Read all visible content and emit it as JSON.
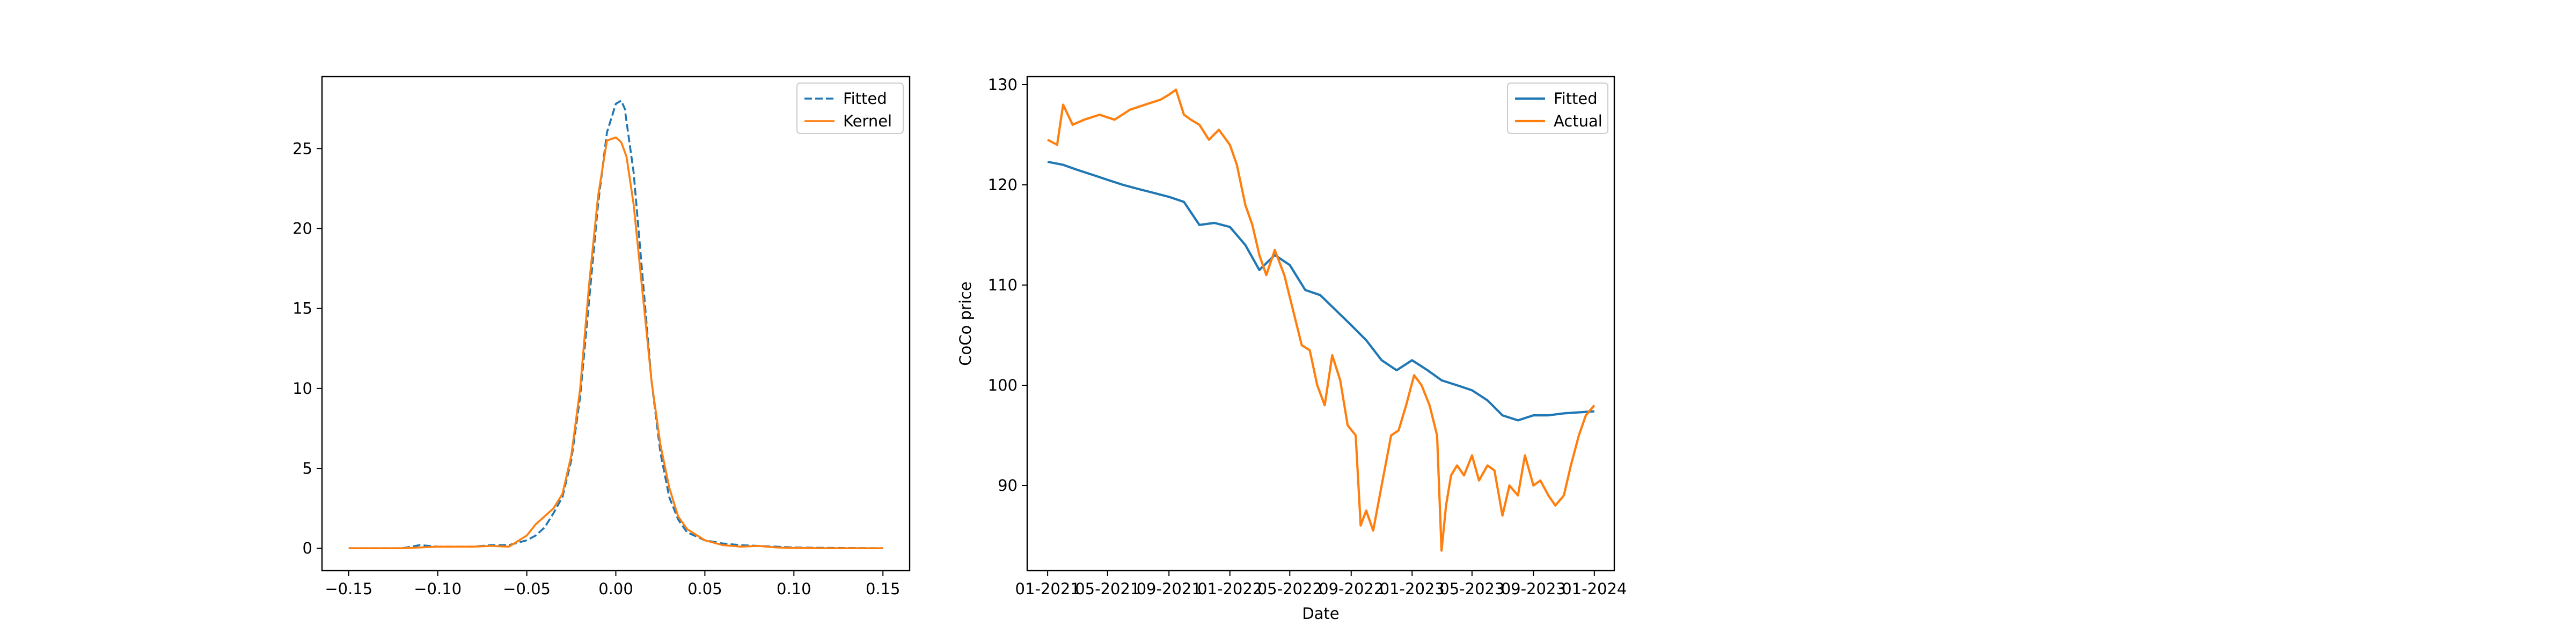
{
  "chart_data": [
    {
      "type": "line",
      "title": "",
      "xlabel": "",
      "ylabel": "",
      "xlim": [
        -0.165,
        0.165
      ],
      "ylim": [
        -1.4,
        29.5
      ],
      "xticks": [
        -0.15,
        -0.1,
        -0.05,
        0.0,
        0.05,
        0.1,
        0.15
      ],
      "xtick_labels": [
        "−0.15",
        "−0.10",
        "−0.05",
        "0.00",
        "0.05",
        "0.10",
        "0.15"
      ],
      "yticks": [
        0,
        5,
        10,
        15,
        20,
        25
      ],
      "ytick_labels": [
        "0",
        "5",
        "10",
        "15",
        "20",
        "25"
      ],
      "grid": false,
      "legend_position": "top-right",
      "series": [
        {
          "name": "Fitted",
          "color": "#1f77b4",
          "style": "dashed",
          "x": [
            -0.15,
            -0.12,
            -0.11,
            -0.1,
            -0.09,
            -0.08,
            -0.07,
            -0.06,
            -0.05,
            -0.045,
            -0.04,
            -0.035,
            -0.03,
            -0.025,
            -0.02,
            -0.015,
            -0.01,
            -0.005,
            0.0,
            0.003,
            0.005,
            0.01,
            0.015,
            0.02,
            0.025,
            0.03,
            0.035,
            0.04,
            0.05,
            0.06,
            0.07,
            0.08,
            0.09,
            0.1,
            0.12,
            0.15
          ],
          "y": [
            0,
            0,
            0.2,
            0.1,
            0.1,
            0.1,
            0.2,
            0.2,
            0.5,
            0.8,
            1.3,
            2.2,
            3.2,
            5.5,
            9.5,
            15.5,
            21.5,
            26.0,
            27.8,
            28.0,
            27.5,
            23.5,
            17.0,
            10.5,
            6.0,
            3.2,
            1.8,
            1.0,
            0.5,
            0.3,
            0.2,
            0.15,
            0.1,
            0.05,
            0.02,
            0
          ]
        },
        {
          "name": "Kernel",
          "color": "#ff7f0e",
          "style": "solid",
          "x": [
            -0.15,
            -0.12,
            -0.11,
            -0.1,
            -0.09,
            -0.08,
            -0.07,
            -0.06,
            -0.05,
            -0.045,
            -0.04,
            -0.035,
            -0.03,
            -0.025,
            -0.02,
            -0.015,
            -0.01,
            -0.005,
            0.0,
            0.003,
            0.006,
            0.01,
            0.015,
            0.02,
            0.025,
            0.03,
            0.035,
            0.04,
            0.05,
            0.06,
            0.07,
            0.08,
            0.09,
            0.1,
            0.12,
            0.15
          ],
          "y": [
            0,
            0,
            0.05,
            0.1,
            0.1,
            0.1,
            0.15,
            0.1,
            0.8,
            1.5,
            2.0,
            2.5,
            3.4,
            5.8,
            10.0,
            16.5,
            22.0,
            25.5,
            25.7,
            25.4,
            24.5,
            21.5,
            16.0,
            10.5,
            6.5,
            3.8,
            2.0,
            1.2,
            0.5,
            0.2,
            0.1,
            0.15,
            0.05,
            0.02,
            0.0,
            0
          ]
        }
      ]
    },
    {
      "type": "line",
      "title": "",
      "xlabel": "Date",
      "ylabel": "CoCo price",
      "xlim": [
        "2020-11-21",
        "2024-02-10"
      ],
      "ylim": [
        81.5,
        130.8
      ],
      "xticks": [
        "2021-01-01",
        "2021-05-01",
        "2021-09-01",
        "2022-01-01",
        "2022-05-01",
        "2022-09-01",
        "2023-01-01",
        "2023-05-01",
        "2023-09-01",
        "2024-01-01"
      ],
      "xtick_labels": [
        "01-2021",
        "05-2021",
        "09-2021",
        "01-2022",
        "05-2022",
        "09-2022",
        "01-2023",
        "05-2023",
        "09-2023",
        "01-2024"
      ],
      "yticks": [
        90,
        100,
        110,
        120,
        130
      ],
      "ytick_labels": [
        "90",
        "100",
        "110",
        "120",
        "130"
      ],
      "grid": false,
      "legend_position": "top-right",
      "series": [
        {
          "name": "Fitted",
          "color": "#1f77b4",
          "style": "solid",
          "x": [
            "2021-01-01",
            "2021-02-01",
            "2021-03-01",
            "2021-04-01",
            "2021-05-01",
            "2021-06-01",
            "2021-07-01",
            "2021-08-01",
            "2021-09-01",
            "2021-10-01",
            "2021-11-01",
            "2021-12-01",
            "2022-01-01",
            "2022-02-01",
            "2022-03-01",
            "2022-04-01",
            "2022-05-01",
            "2022-06-01",
            "2022-07-01",
            "2022-08-01",
            "2022-09-01",
            "2022-10-01",
            "2022-11-01",
            "2022-12-01",
            "2023-01-01",
            "2023-02-01",
            "2023-03-01",
            "2023-04-01",
            "2023-05-01",
            "2023-06-01",
            "2023-07-01",
            "2023-08-01",
            "2023-09-01",
            "2023-10-01",
            "2023-11-01",
            "2023-12-01",
            "2024-01-01"
          ],
          "y": [
            122.3,
            122.0,
            121.5,
            121.0,
            120.5,
            120.0,
            119.6,
            119.2,
            118.8,
            118.3,
            116.0,
            116.2,
            115.8,
            114.0,
            111.5,
            113.0,
            112.0,
            109.5,
            109.0,
            107.5,
            106.0,
            104.5,
            102.5,
            101.5,
            102.5,
            101.5,
            100.5,
            100.0,
            99.5,
            98.5,
            97.0,
            96.5,
            97.0,
            97.0,
            97.2,
            97.3,
            97.4
          ]
        },
        {
          "name": "Actual",
          "color": "#ff7f0e",
          "style": "solid",
          "x": [
            "2021-01-01",
            "2021-01-20",
            "2021-02-01",
            "2021-02-20",
            "2021-03-15",
            "2021-04-15",
            "2021-05-15",
            "2021-06-15",
            "2021-07-15",
            "2021-08-15",
            "2021-09-01",
            "2021-09-15",
            "2021-10-01",
            "2021-10-15",
            "2021-11-01",
            "2021-11-20",
            "2021-12-10",
            "2022-01-01",
            "2022-01-15",
            "2022-02-01",
            "2022-02-15",
            "2022-03-01",
            "2022-03-15",
            "2022-04-01",
            "2022-04-20",
            "2022-05-10",
            "2022-05-25",
            "2022-06-10",
            "2022-06-25",
            "2022-07-10",
            "2022-07-25",
            "2022-08-10",
            "2022-08-25",
            "2022-09-10",
            "2022-09-20",
            "2022-10-01",
            "2022-10-15",
            "2022-11-01",
            "2022-11-20",
            "2022-12-05",
            "2022-12-20",
            "2023-01-05",
            "2023-01-20",
            "2023-02-05",
            "2023-02-20",
            "2023-03-01",
            "2023-03-10",
            "2023-03-20",
            "2023-04-01",
            "2023-04-15",
            "2023-05-01",
            "2023-05-15",
            "2023-06-01",
            "2023-06-15",
            "2023-07-01",
            "2023-07-15",
            "2023-08-01",
            "2023-08-15",
            "2023-09-01",
            "2023-09-15",
            "2023-10-01",
            "2023-10-15",
            "2023-11-01",
            "2023-11-15",
            "2023-12-01",
            "2023-12-15",
            "2024-01-01"
          ],
          "y": [
            124.5,
            124.0,
            128.0,
            126.0,
            126.5,
            127.0,
            126.5,
            127.5,
            128.0,
            128.5,
            129.0,
            129.5,
            127.0,
            126.5,
            126.0,
            124.5,
            125.5,
            124.0,
            122.0,
            118.0,
            116.0,
            113.0,
            111.0,
            113.5,
            111.0,
            107.0,
            104.0,
            103.5,
            100.0,
            98.0,
            103.0,
            100.5,
            96.0,
            95.0,
            86.0,
            87.5,
            85.5,
            90.0,
            95.0,
            95.5,
            98.0,
            101.0,
            100.0,
            98.0,
            95.0,
            83.5,
            88.0,
            91.0,
            92.0,
            91.0,
            93.0,
            90.5,
            92.0,
            91.5,
            87.0,
            90.0,
            89.0,
            93.0,
            90.0,
            90.5,
            89.0,
            88.0,
            89.0,
            92.0,
            95.0,
            97.0,
            98.0
          ]
        }
      ]
    }
  ]
}
